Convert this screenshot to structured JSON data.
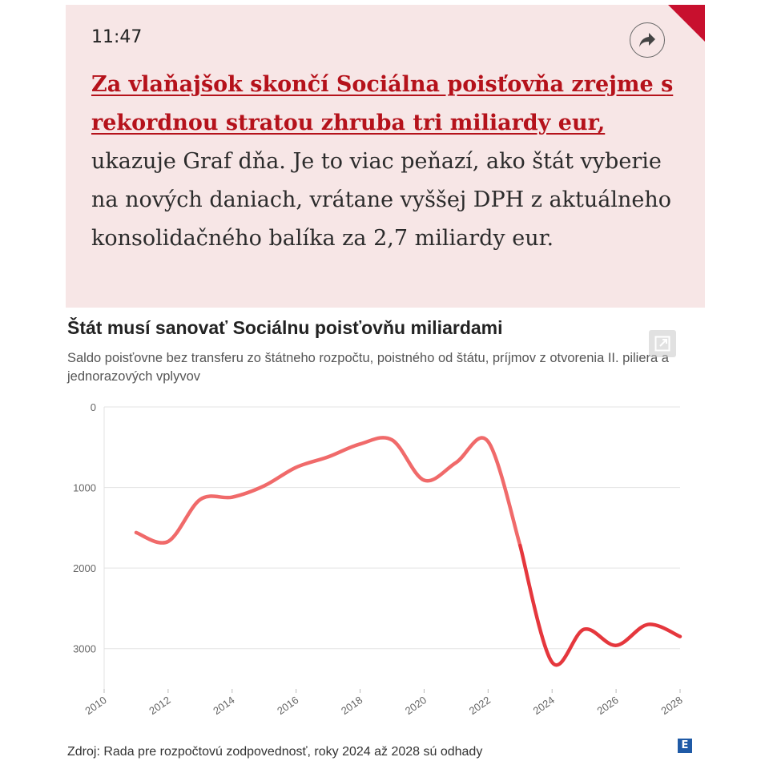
{
  "post": {
    "time": "11:47",
    "headline_link": "Za vlaňajšok skončí Sociálna poisťovňa zrejme s rekordnou stratou zhruba tri miliardy eur,",
    "headline_rest": " ukazuje Graf dňa. Je to viac peňazí, ako štát vyberie na nových daniach, vrátane vyššej DPH z aktuálneho konsolidačného balíka za 2,7 miliardy eur.",
    "accent_color": "#b5121b",
    "corner_color": "#c8102e",
    "share_icon": "share-arrow-icon"
  },
  "chart_data": {
    "type": "line",
    "title": "Štát musí sanovať Sociálnu poisťovňu miliardami",
    "subtitle": "Saldo poisťovne bez transferu zo štátneho rozpočtu, poistného od štátu, príjmov z otvorenia II. piliera a jednorazových vplyvov",
    "xlabel": "",
    "ylabel": "",
    "x": [
      2011,
      2012,
      2013,
      2014,
      2015,
      2016,
      2017,
      2018,
      2019,
      2020,
      2021,
      2022,
      2023,
      2024,
      2025,
      2026,
      2027,
      2028
    ],
    "values": [
      1560,
      1670,
      1150,
      1120,
      980,
      750,
      620,
      460,
      410,
      910,
      690,
      430,
      1720,
      3170,
      2760,
      2960,
      2700,
      2850
    ],
    "xlim": [
      2010,
      2028
    ],
    "ylim": [
      0,
      3500
    ],
    "y_axis_inverted": true,
    "x_ticks": [
      "2010",
      "2012",
      "2014",
      "2016",
      "2018",
      "2020",
      "2022",
      "2024",
      "2026",
      "2028"
    ],
    "y_ticks": [
      "0",
      "1000",
      "2000",
      "3000"
    ],
    "grid": true,
    "line_color": "#e5373d",
    "line_color_estimate": "#f06a6a",
    "source": "Zdroj: Rada pre rozpočtovú zodpovednosť, roky 2024 až 2028 sú odhady",
    "logo_text": "E",
    "expand_icon": "expand-icon"
  }
}
